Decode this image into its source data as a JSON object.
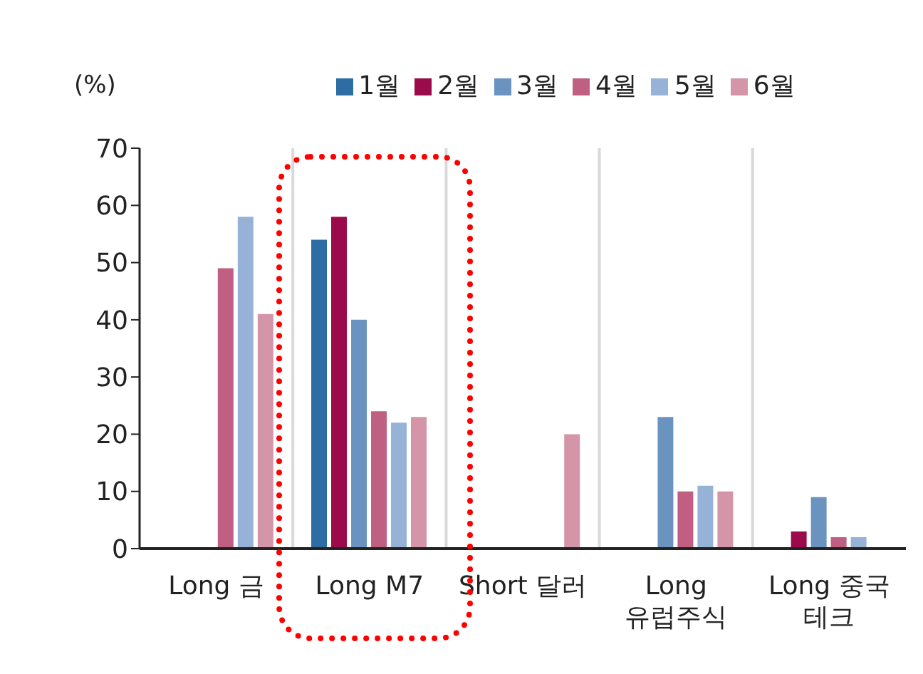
{
  "chart_data": {
    "type": "bar",
    "ylabel": "(%)",
    "categories": [
      "Long 금",
      "Long M7",
      "Short 달러",
      "Long\n유럽주식",
      "Long 중국\n테크"
    ],
    "series": [
      {
        "name": "1월",
        "color": "#2e6ca4",
        "values": [
          null,
          54,
          null,
          null,
          null
        ]
      },
      {
        "name": "2월",
        "color": "#9b0a4b",
        "values": [
          null,
          58,
          null,
          null,
          3
        ]
      },
      {
        "name": "3월",
        "color": "#6a94bf",
        "values": [
          null,
          40,
          null,
          23,
          9
        ]
      },
      {
        "name": "4월",
        "color": "#bf5f82",
        "values": [
          49,
          24,
          null,
          10,
          2
        ]
      },
      {
        "name": "5월",
        "color": "#96b2d6",
        "values": [
          58,
          22,
          null,
          11,
          2
        ]
      },
      {
        "name": "6월",
        "color": "#d495a9",
        "values": [
          41,
          23,
          20,
          10,
          null
        ]
      }
    ],
    "ylim": [
      0,
      70
    ],
    "yticks": [
      0,
      10,
      20,
      30,
      40,
      50,
      60,
      70
    ],
    "grid": "x",
    "legend": "top"
  }
}
